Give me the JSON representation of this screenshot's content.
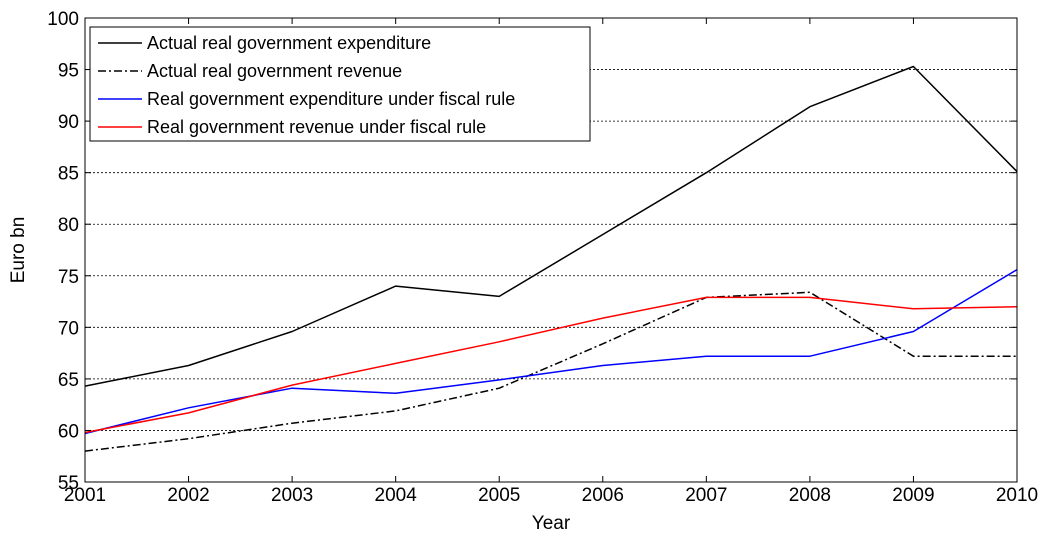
{
  "chart_data": {
    "type": "line",
    "title": "",
    "xlabel": "Year",
    "ylabel": "Euro bn",
    "xlim": [
      2001,
      2010
    ],
    "ylim": [
      55,
      100
    ],
    "x_ticks": [
      2001,
      2002,
      2003,
      2004,
      2005,
      2006,
      2007,
      2008,
      2009,
      2010
    ],
    "y_ticks": [
      55,
      60,
      65,
      70,
      75,
      80,
      85,
      90,
      95,
      100
    ],
    "grid": "horizontal dotted",
    "legend_position": "top-left",
    "x": [
      2001,
      2002,
      2003,
      2004,
      2005,
      2006,
      2007,
      2008,
      2009,
      2010
    ],
    "series": [
      {
        "name": "Actual real government expenditure",
        "color": "#000000",
        "style": "solid",
        "values": [
          64.3,
          66.3,
          69.6,
          74.0,
          73.0,
          79.0,
          85.0,
          91.4,
          95.3,
          85.1
        ]
      },
      {
        "name": "Actual real government revenue",
        "color": "#000000",
        "style": "dashdot",
        "values": [
          58.0,
          59.2,
          60.7,
          61.9,
          64.1,
          68.4,
          72.9,
          73.4,
          67.2,
          67.2
        ]
      },
      {
        "name": "Real government expenditure under fiscal rule",
        "color": "#0000ff",
        "style": "solid",
        "values": [
          59.7,
          62.2,
          64.1,
          63.6,
          64.9,
          66.3,
          67.2,
          67.2,
          69.6,
          75.6
        ]
      },
      {
        "name": "Real government revenue under fiscal rule",
        "color": "#ff0000",
        "style": "solid",
        "values": [
          59.8,
          61.7,
          64.4,
          66.5,
          68.6,
          70.9,
          72.9,
          72.9,
          71.8,
          72.0
        ]
      }
    ]
  }
}
